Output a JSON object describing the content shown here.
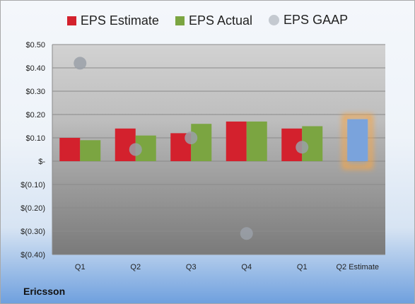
{
  "chart_data": {
    "type": "bar",
    "categories": [
      "Q1",
      "Q2",
      "Q3",
      "Q4",
      "Q1",
      "Q2 Estimate"
    ],
    "series": [
      {
        "name": "EPS Estimate",
        "type": "bar",
        "color": "#d3212d",
        "values": [
          0.1,
          0.14,
          0.12,
          0.17,
          0.14,
          null
        ]
      },
      {
        "name": "EPS Actual",
        "type": "bar",
        "color": "#7ba541",
        "values": [
          0.09,
          0.11,
          0.16,
          0.17,
          0.15,
          0.18
        ]
      },
      {
        "name": "EPS GAAP",
        "type": "scatter",
        "color": "#9aa0a8",
        "values": [
          0.42,
          0.05,
          0.1,
          -0.31,
          0.06,
          null
        ]
      }
    ],
    "highlight": {
      "category": "Q2 Estimate",
      "color": "#7aa3dc",
      "glow": "#f4a64a"
    },
    "yticks": [
      0.5,
      0.4,
      0.3,
      0.2,
      0.1,
      0,
      -0.1,
      -0.2,
      -0.3,
      -0.4
    ],
    "ytick_labels": [
      "$0.50",
      "$0.40",
      "$0.30",
      "$0.20",
      "$0.10",
      "$-",
      "$(0.10)",
      "$(0.20)",
      "$(0.30)",
      "$(0.40)"
    ],
    "ylim": [
      -0.4,
      0.5
    ],
    "grid": true,
    "legend_position": "top"
  },
  "legend": {
    "estimate": "EPS Estimate",
    "actual": "EPS Actual",
    "gaap": "EPS GAAP"
  },
  "company": "Ericsson"
}
